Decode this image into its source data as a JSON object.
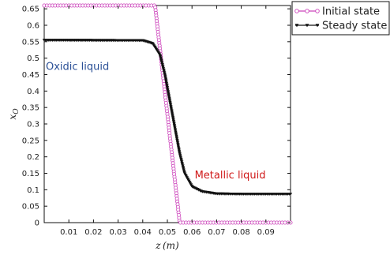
{
  "chart_data": {
    "type": "line",
    "title": "",
    "xlabel": "z (m)",
    "ylabel": "x_O",
    "xlim": [
      0,
      0.1
    ],
    "ylim": [
      0,
      0.66
    ],
    "x_ticks": [
      "0.01",
      "0.02",
      "0.03",
      "0.04",
      "0.05",
      "0.06",
      "0.07",
      "0.08",
      "0.09"
    ],
    "y_ticks": [
      "0",
      "0.05",
      "0.1",
      "0.15",
      "0.2",
      "0.25",
      "0.3",
      "0.35",
      "0.4",
      "0.45",
      "0.5",
      "0.55",
      "0.6",
      "0.65"
    ],
    "grid": false,
    "legend_position": "outside-top-right",
    "series": [
      {
        "name": "Initial state",
        "color": "#cc44bb",
        "marker": "circle",
        "x": [
          0.0,
          0.045,
          0.055,
          0.1
        ],
        "y": [
          0.66,
          0.66,
          0.0,
          0.0
        ]
      },
      {
        "name": "Steady state",
        "color": "#111111",
        "marker": "triangle",
        "x": [
          0.0,
          0.04,
          0.044,
          0.047,
          0.049,
          0.051,
          0.053,
          0.055,
          0.057,
          0.06,
          0.064,
          0.07,
          0.08,
          0.1
        ],
        "y": [
          0.555,
          0.554,
          0.545,
          0.51,
          0.45,
          0.37,
          0.29,
          0.21,
          0.15,
          0.11,
          0.095,
          0.088,
          0.087,
          0.087
        ]
      }
    ],
    "annotations": [
      {
        "text": "Oxidic liquid",
        "x": 0.0135,
        "y": 0.465,
        "color": "#2a4f96"
      },
      {
        "text": "Metallic liquid",
        "x": 0.0755,
        "y": 0.135,
        "color": "#d01818"
      }
    ]
  }
}
